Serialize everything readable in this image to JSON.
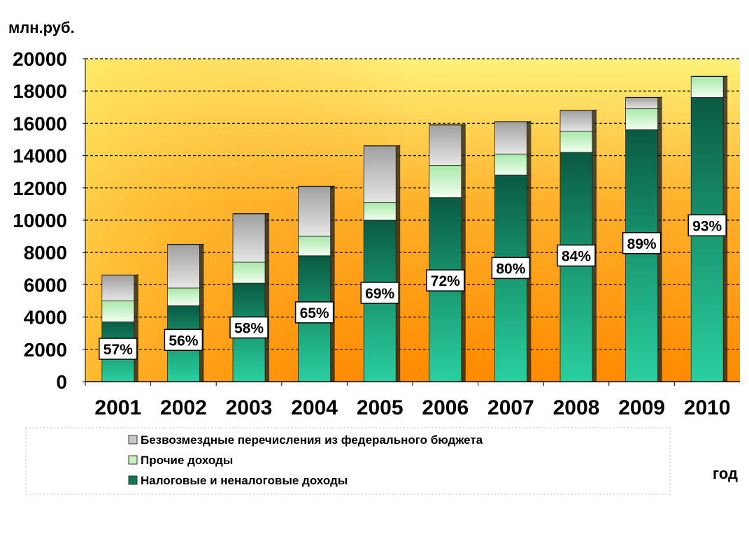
{
  "chart_data": {
    "type": "bar",
    "stacked": true,
    "y_unit": "млн.руб.",
    "x_unit": "год",
    "categories": [
      "2001",
      "2002",
      "2003",
      "2004",
      "2005",
      "2006",
      "2007",
      "2008",
      "2009",
      "2010"
    ],
    "series": [
      {
        "name": "Налоговые и неналоговые доходы",
        "color": "#0e6e52",
        "values": [
          3700,
          4700,
          6100,
          7800,
          10000,
          11400,
          12800,
          14200,
          15600,
          17600
        ]
      },
      {
        "name": "Прочие доходы",
        "color": "#c8f0c0",
        "values": [
          1300,
          1100,
          1300,
          1200,
          1100,
          2000,
          1300,
          1300,
          1300,
          1300
        ]
      },
      {
        "name": "Безвозмездные перечисления из федерального бюджета",
        "color": "#c8c8c8",
        "values": [
          1600,
          2700,
          3000,
          3100,
          3500,
          2500,
          2000,
          1300,
          700,
          0
        ]
      }
    ],
    "data_labels": [
      "57%",
      "56%",
      "58%",
      "65%",
      "69%",
      "72%",
      "80%",
      "84%",
      "89%",
      "93%"
    ],
    "ylim": [
      0,
      20000
    ],
    "yticks": [
      0,
      2000,
      4000,
      6000,
      8000,
      10000,
      12000,
      14000,
      16000,
      18000,
      20000
    ],
    "grid": true,
    "legend_position": "bottom"
  }
}
